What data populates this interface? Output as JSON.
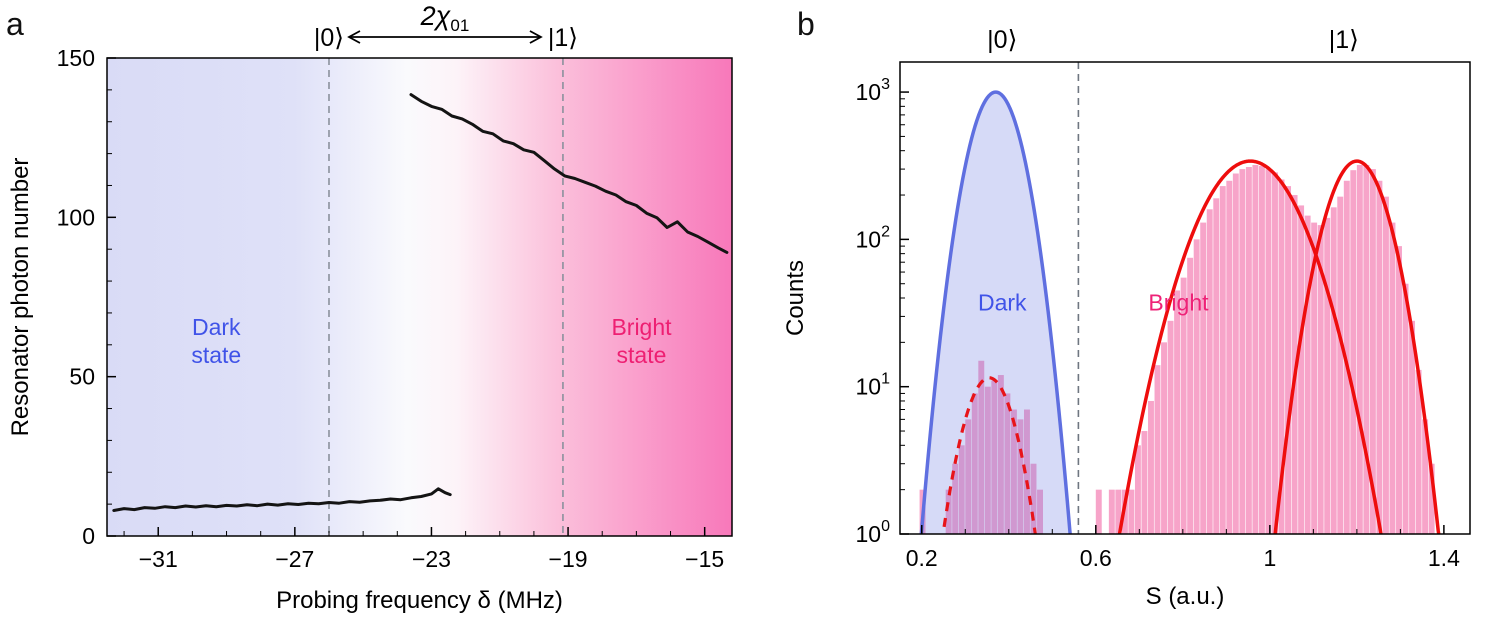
{
  "figure": {
    "panel_a_label": "a",
    "panel_b_label": "b"
  },
  "chart_data": [
    {
      "id": "panel_a",
      "type": "line",
      "xlabel": "Probing frequency δ (MHz)",
      "ylabel": "Resonator photon number",
      "xlim": [
        -32.5,
        -14.2
      ],
      "ylim": [
        0,
        150
      ],
      "xticks": {
        "values": [
          -31,
          -27,
          -23,
          -19,
          -15
        ],
        "labels": [
          "−31",
          "−27",
          "−23",
          "−19",
          "−15"
        ],
        "minor_step": 1
      },
      "yticks": {
        "values": [
          0,
          50,
          100,
          150
        ],
        "labels": [
          "0",
          "50",
          "100",
          "150"
        ],
        "minor_step": 10
      },
      "state_markers": {
        "ket0": {
          "x": -26.0,
          "label": "|0⟩"
        },
        "ket1": {
          "x": -19.15,
          "label": "|1⟩"
        },
        "arrow_label": {
          "main": "2χ",
          "sub": "01"
        }
      },
      "background_gradient": [
        {
          "offset": "0%",
          "color": "#d9dbf6"
        },
        {
          "offset": "30%",
          "color": "#dfe1f8"
        },
        {
          "offset": "48%",
          "color": "#fafafd"
        },
        {
          "offset": "56%",
          "color": "#fdf3f8"
        },
        {
          "offset": "72%",
          "color": "#fbc0db"
        },
        {
          "offset": "100%",
          "color": "#f878ba"
        }
      ],
      "region_labels": [
        {
          "lines": [
            "Dark",
            "state"
          ],
          "x": -29.3,
          "y": 63,
          "color": "#4053e8"
        },
        {
          "lines": [
            "Bright",
            "state"
          ],
          "x": -16.85,
          "y": 63,
          "color": "#ee1f72"
        }
      ],
      "series": [
        {
          "name": "dark-branch",
          "color": "#141414",
          "x": [
            -32.3,
            -32.0,
            -31.7,
            -31.4,
            -31.1,
            -30.8,
            -30.5,
            -30.2,
            -29.9,
            -29.6,
            -29.3,
            -29.0,
            -28.7,
            -28.4,
            -28.1,
            -27.8,
            -27.5,
            -27.2,
            -26.9,
            -26.6,
            -26.3,
            -26.0,
            -25.7,
            -25.4,
            -25.1,
            -24.8,
            -24.5,
            -24.2,
            -23.9,
            -23.6,
            -23.3,
            -23.0,
            -22.8,
            -22.6,
            -22.45
          ],
          "y": [
            8.0,
            8.6,
            8.3,
            8.9,
            8.7,
            9.2,
            8.9,
            9.4,
            9.1,
            9.5,
            9.2,
            9.6,
            9.4,
            9.8,
            9.5,
            10.0,
            9.7,
            10.1,
            9.9,
            10.3,
            10.1,
            10.5,
            10.3,
            10.8,
            10.6,
            11.0,
            11.2,
            11.6,
            11.4,
            12.0,
            12.4,
            13.2,
            14.8,
            13.6,
            13.0
          ]
        },
        {
          "name": "bright-branch",
          "color": "#141414",
          "x": [
            -23.6,
            -23.3,
            -23.0,
            -22.7,
            -22.4,
            -22.1,
            -21.8,
            -21.5,
            -21.2,
            -20.9,
            -20.6,
            -20.3,
            -20.0,
            -19.7,
            -19.4,
            -19.1,
            -18.8,
            -18.5,
            -18.2,
            -17.9,
            -17.6,
            -17.3,
            -17.0,
            -16.7,
            -16.4,
            -16.1,
            -15.8,
            -15.5,
            -15.2,
            -14.9,
            -14.6,
            -14.35
          ],
          "y": [
            138.5,
            136.4,
            134.8,
            133.9,
            131.8,
            130.9,
            129.2,
            127.0,
            126.2,
            124.0,
            123.1,
            121.2,
            120.4,
            117.8,
            115.2,
            113.0,
            112.2,
            111.0,
            109.8,
            108.2,
            107.0,
            104.9,
            103.7,
            101.3,
            99.9,
            96.8,
            98.6,
            95.4,
            94.0,
            92.2,
            90.4,
            89.0
          ]
        }
      ]
    },
    {
      "id": "panel_b",
      "type": "bar",
      "xlabel": "S (a.u.)",
      "ylabel": "Counts",
      "xlim": [
        0.15,
        1.46
      ],
      "ylim_log": [
        1,
        1600
      ],
      "xticks": {
        "values": [
          0.2,
          0.6,
          1.0,
          1.4
        ],
        "labels": [
          "0.2",
          "0.6",
          "1",
          "1.4"
        ],
        "minor_step": 0.1
      },
      "yticks_log_exponents": [
        0,
        1,
        2,
        3
      ],
      "threshold_line_x": 0.56,
      "kets": [
        {
          "x": 0.385,
          "label": "|0⟩"
        },
        {
          "x": 1.17,
          "label": "|1⟩"
        }
      ],
      "region_labels": [
        {
          "text": "Dark",
          "x": 0.385,
          "y": 33,
          "color": "#4053e8"
        },
        {
          "text": "Bright",
          "x": 0.79,
          "y": 33,
          "color": "#ee2277"
        }
      ],
      "histogram": {
        "bin_start": 0.195,
        "bin_width": 0.015,
        "color": "#f79fc6",
        "opacity": 0.95,
        "counts": [
          2,
          0,
          0,
          1,
          2,
          3,
          4,
          6,
          9,
          15,
          10,
          11,
          12,
          9,
          7,
          6,
          7,
          3,
          2,
          1,
          0,
          1,
          0,
          0,
          0,
          0,
          0,
          2,
          0,
          2,
          2,
          2,
          2,
          4,
          5,
          8,
          14,
          20,
          28,
          45,
          55,
          75,
          100,
          130,
          160,
          190,
          230,
          250,
          280,
          300,
          310,
          320,
          315,
          300,
          285,
          255,
          230,
          200,
          170,
          145,
          130,
          125,
          140,
          165,
          195,
          250,
          295,
          320,
          320,
          300,
          250,
          195,
          130,
          90,
          50,
          28,
          13,
          6,
          3
        ]
      },
      "gaussians": [
        {
          "name": "dark-envelope",
          "amplitude": 1000,
          "center": 0.37,
          "sigma": 0.046,
          "stroke": "#5f6fe0",
          "fill": "rgba(108,122,226,0.28)",
          "dashed": false,
          "stroke_width": 3.5
        },
        {
          "name": "dark-fit",
          "amplitude": 11.5,
          "center": 0.355,
          "sigma": 0.048,
          "stroke": "#e81419",
          "fill": "none",
          "dashed": true,
          "stroke_width": 3.2
        },
        {
          "name": "bright-fit-1",
          "amplitude": 340,
          "center": 0.955,
          "sigma": 0.088,
          "stroke": "#ee0d0d",
          "fill": "none",
          "dashed": false,
          "stroke_width": 3.5
        },
        {
          "name": "bright-fit-2",
          "amplitude": 340,
          "center": 1.2,
          "sigma": 0.055,
          "stroke": "#ee0d0d",
          "fill": "none",
          "dashed": false,
          "stroke_width": 3.5
        }
      ]
    }
  ]
}
